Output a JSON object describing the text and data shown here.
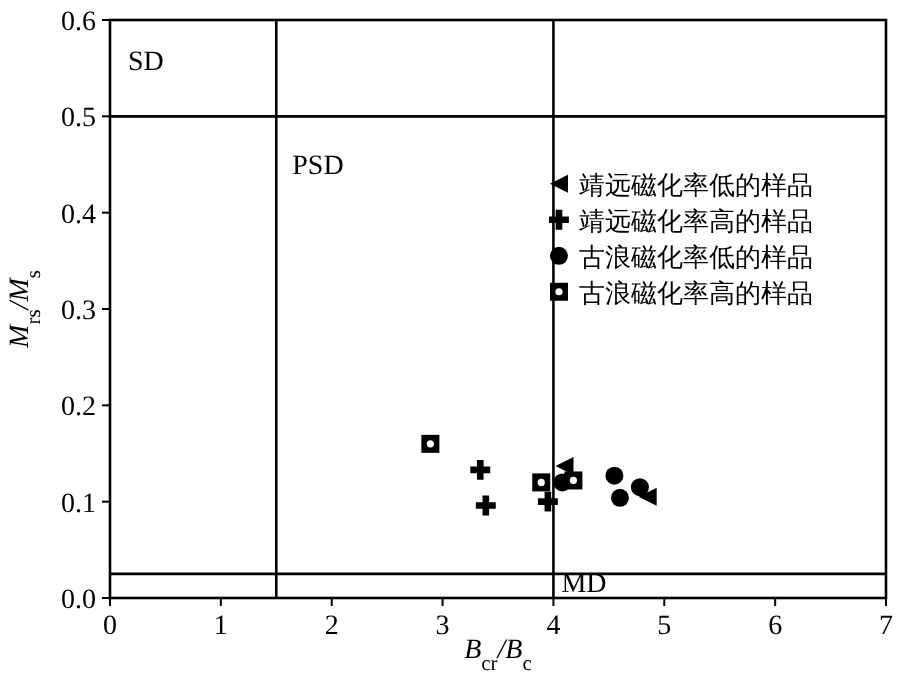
{
  "chart_data": {
    "type": "scatter",
    "xlabel": "B$_{cr}$/B$_{c}$",
    "ylabel": "M$_{rs}$/M$_{s}$",
    "xlim": [
      0,
      7
    ],
    "ylim": [
      0,
      0.6
    ],
    "xticks": [
      0,
      1,
      2,
      3,
      4,
      5,
      6,
      7
    ],
    "yticks": [
      {
        "value": 0,
        "label": "0.0"
      },
      {
        "value": 0.1,
        "label": "0.1"
      },
      {
        "value": 0.2,
        "label": "0.2"
      },
      {
        "value": 0.3,
        "label": "0.3"
      },
      {
        "value": 0.4,
        "label": "0.4"
      },
      {
        "value": 0.5,
        "label": "0.5"
      },
      {
        "value": 0.6,
        "label": "0.6"
      }
    ],
    "series": [
      {
        "name": "靖远磁化率低的样品",
        "color": "#000000",
        "marker": "triangle",
        "x": [
          4.1,
          4.85
        ],
        "values": [
          0.137,
          0.105
        ]
      },
      {
        "name": "靖远磁化率高的样品",
        "color": "#000000",
        "marker": "cross",
        "x": [
          3.34,
          3.39,
          3.95
        ],
        "values": [
          0.133,
          0.096,
          0.1
        ]
      },
      {
        "name": "古浪磁化率低的样品",
        "color": "#000000",
        "marker": "circle",
        "x": [
          4.08,
          4.55,
          4.6,
          4.78
        ],
        "values": [
          0.12,
          0.127,
          0.104,
          0.115
        ]
      },
      {
        "name": "古浪磁化率高的样品",
        "color": "#000000",
        "marker": "square",
        "x": [
          2.89,
          3.89,
          4.18
        ],
        "values": [
          0.16,
          0.12,
          0.122
        ]
      }
    ],
    "ref_lines": [
      {
        "axis": "x",
        "value": 1.5
      },
      {
        "axis": "x",
        "value": 4
      },
      {
        "axis": "y",
        "value": 0.5
      },
      {
        "axis": "y",
        "value": 0.025
      }
    ],
    "annotations": [
      "SD",
      "PSD",
      "MD"
    ],
    "legend": "top right",
    "grid": false
  }
}
